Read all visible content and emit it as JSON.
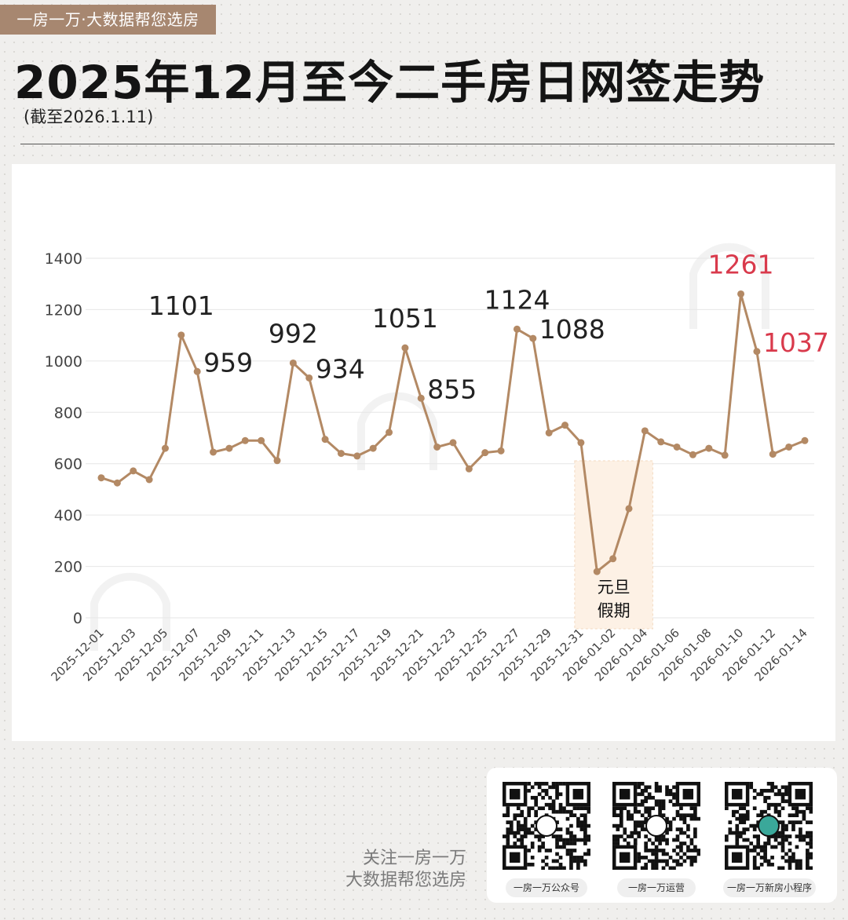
{
  "header": {
    "brand_tag": "一房一万·大数据帮您选房",
    "title": "2025年12月至今二手房日网签走势",
    "subtitle": "(截至2026.1.11)"
  },
  "chart_data": {
    "type": "line",
    "title": "2025年12月至今二手房日网签走势",
    "xlabel": "",
    "ylabel": "",
    "ylim": [
      0,
      1400
    ],
    "yticks": [
      0,
      200,
      400,
      600,
      800,
      1000,
      1200,
      1400
    ],
    "grid": true,
    "legend": "none",
    "line_color": "#b38964",
    "x": [
      "2025-12-01",
      "2025-12-02",
      "2025-12-03",
      "2025-12-04",
      "2025-12-05",
      "2025-12-06",
      "2025-12-07",
      "2025-12-08",
      "2025-12-09",
      "2025-12-10",
      "2025-12-11",
      "2025-12-12",
      "2025-12-13",
      "2025-12-14",
      "2025-12-15",
      "2025-12-16",
      "2025-12-17",
      "2025-12-18",
      "2025-12-19",
      "2025-12-20",
      "2025-12-21",
      "2025-12-22",
      "2025-12-23",
      "2025-12-24",
      "2025-12-25",
      "2025-12-26",
      "2025-12-27",
      "2025-12-28",
      "2025-12-29",
      "2025-12-30",
      "2025-12-31",
      "2026-01-01",
      "2026-01-02",
      "2026-01-03",
      "2026-01-04",
      "2026-01-05",
      "2026-01-06",
      "2026-01-07",
      "2026-01-08",
      "2026-01-09",
      "2026-01-10",
      "2026-01-11",
      "2026-01-12",
      "2026-01-13",
      "2026-01-14"
    ],
    "xticks": [
      "2025-12-01",
      "2025-12-03",
      "2025-12-05",
      "2025-12-07",
      "2025-12-09",
      "2025-12-11",
      "2025-12-13",
      "2025-12-15",
      "2025-12-17",
      "2025-12-19",
      "2025-12-21",
      "2025-12-23",
      "2025-12-25",
      "2025-12-27",
      "2025-12-29",
      "2025-12-31",
      "2026-01-02",
      "2026-01-04",
      "2026-01-06",
      "2026-01-08",
      "2026-01-10",
      "2026-01-12",
      "2026-01-14"
    ],
    "values": [
      545,
      525,
      572,
      538,
      660,
      1101,
      959,
      645,
      660,
      690,
      690,
      612,
      992,
      934,
      695,
      640,
      630,
      660,
      722,
      1051,
      855,
      665,
      682,
      580,
      643,
      650,
      1124,
      1088,
      720,
      750,
      682,
      180,
      230,
      425,
      728,
      685,
      665,
      635,
      660,
      633,
      1261,
      1037,
      637,
      665,
      690
    ],
    "annotations": [
      {
        "x": "2025-12-06",
        "label": "1101",
        "color": "#222222"
      },
      {
        "x": "2025-12-07",
        "label": "959",
        "color": "#222222"
      },
      {
        "x": "2025-12-13",
        "label": "992",
        "color": "#222222"
      },
      {
        "x": "2025-12-14",
        "label": "934",
        "color": "#222222"
      },
      {
        "x": "2025-12-20",
        "label": "1051",
        "color": "#222222"
      },
      {
        "x": "2025-12-21",
        "label": "855",
        "color": "#222222"
      },
      {
        "x": "2025-12-27",
        "label": "1124",
        "color": "#222222"
      },
      {
        "x": "2025-12-28",
        "label": "1088",
        "color": "#222222"
      },
      {
        "x": "2026-01-10",
        "label": "1261",
        "color": "#d93a4c"
      },
      {
        "x": "2026-01-11",
        "label": "1037",
        "color": "#d93a4c"
      }
    ],
    "highlight_region": {
      "from": "2025-12-31",
      "to": "2026-01-04",
      "label_line1": "元旦",
      "label_line2": "假期",
      "fill": "#fdf1e5"
    }
  },
  "footer": {
    "follow_line1": "关注一房一万",
    "follow_line2": "大数据帮您选房",
    "qr_codes": [
      {
        "label": "一房一万公众号"
      },
      {
        "label": "一房一万运营"
      },
      {
        "label": "一房一万新房小程序"
      }
    ]
  }
}
